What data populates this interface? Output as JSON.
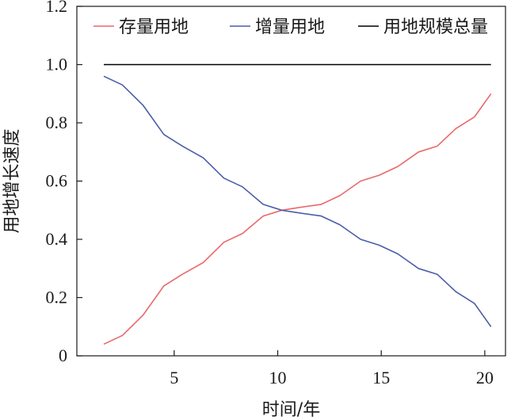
{
  "chart_data": {
    "type": "line",
    "title": "",
    "xlabel": "时间/年",
    "ylabel": "用地增长速度",
    "xlim": [
      0.3,
      21.0
    ],
    "ylim": [
      0,
      1.2
    ],
    "xticks": [
      5,
      10,
      15,
      20
    ],
    "xtick_labels": [
      "5",
      "10",
      "15",
      "20"
    ],
    "yticks": [
      0,
      0.2,
      0.4,
      0.6,
      0.8,
      1.0,
      1.2
    ],
    "ytick_labels": [
      "0",
      "0.2",
      "0.4",
      "0.6",
      "0.8",
      "1.0",
      "1.2"
    ],
    "grid": false,
    "legend_position": "top",
    "series": [
      {
        "name": "存量用地",
        "color": "#e8696b",
        "x": [
          1.6,
          2.5,
          3.5,
          4.5,
          5.4,
          6.4,
          7.4,
          8.3,
          9.3,
          10.2,
          11.1,
          12.1,
          13.0,
          14.0,
          14.9,
          15.8,
          16.8,
          17.7,
          18.6,
          19.5,
          20.3
        ],
        "y": [
          0.04,
          0.07,
          0.14,
          0.24,
          0.28,
          0.32,
          0.39,
          0.42,
          0.48,
          0.5,
          0.51,
          0.52,
          0.55,
          0.6,
          0.62,
          0.65,
          0.7,
          0.72,
          0.78,
          0.82,
          0.9
        ]
      },
      {
        "name": "增量用地",
        "color": "#4a5ea8",
        "x": [
          1.6,
          2.5,
          3.5,
          4.5,
          5.4,
          6.4,
          7.4,
          8.3,
          9.3,
          10.2,
          11.1,
          12.1,
          13.0,
          14.0,
          14.9,
          15.8,
          16.8,
          17.7,
          18.6,
          19.5,
          20.3
        ],
        "y": [
          0.96,
          0.93,
          0.86,
          0.76,
          0.72,
          0.68,
          0.61,
          0.58,
          0.52,
          0.5,
          0.49,
          0.48,
          0.45,
          0.4,
          0.38,
          0.35,
          0.3,
          0.28,
          0.22,
          0.18,
          0.1
        ]
      },
      {
        "name": "用地规模总量",
        "color": "#000000",
        "x": [
          1.6,
          20.3
        ],
        "y": [
          1.0,
          1.0
        ]
      }
    ]
  }
}
